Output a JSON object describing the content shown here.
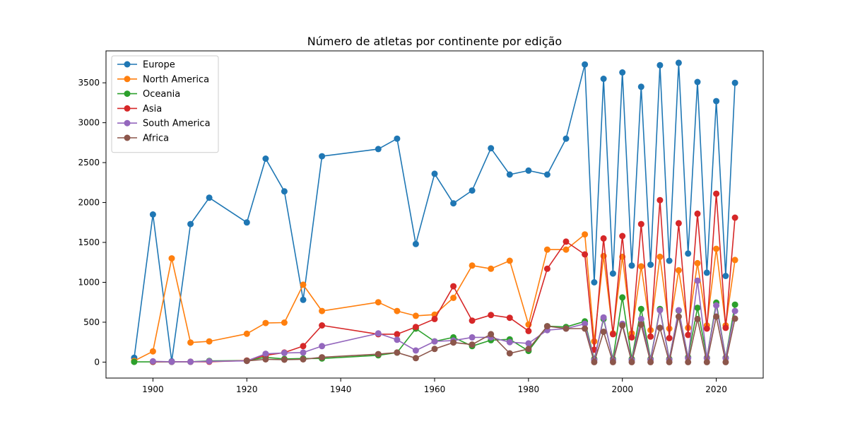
{
  "chart_data": {
    "type": "line",
    "title": "Número de atletas por continente por edição",
    "xlabel": "",
    "ylabel": "",
    "xlim": [
      1890,
      2030
    ],
    "ylim": [
      -200,
      3900
    ],
    "x_ticks": [
      1900,
      1920,
      1940,
      1960,
      1980,
      2000,
      2020
    ],
    "y_ticks": [
      0,
      500,
      1000,
      1500,
      2000,
      2500,
      3000,
      3500
    ],
    "legend_position": "top-left",
    "grid": false,
    "series": [
      {
        "name": "Europe",
        "color": "#1f77b4",
        "points": [
          [
            1896,
            55
          ],
          [
            1900,
            1850
          ],
          [
            1904,
            10
          ],
          [
            1908,
            1730
          ],
          [
            1912,
            2060
          ],
          [
            1920,
            1750
          ],
          [
            1924,
            2550
          ],
          [
            1928,
            2140
          ],
          [
            1932,
            780
          ],
          [
            1936,
            2580
          ],
          [
            1948,
            2670
          ],
          [
            1952,
            2800
          ],
          [
            1956,
            1480
          ],
          [
            1960,
            2360
          ],
          [
            1964,
            1990
          ],
          [
            1968,
            2150
          ],
          [
            1972,
            2680
          ],
          [
            1976,
            2350
          ],
          [
            1980,
            2400
          ],
          [
            1984,
            2350
          ],
          [
            1988,
            2800
          ],
          [
            1992,
            3730
          ],
          [
            1994,
            1000
          ],
          [
            1996,
            3550
          ],
          [
            1998,
            1110
          ],
          [
            2000,
            3630
          ],
          [
            2002,
            1210
          ],
          [
            2004,
            3450
          ],
          [
            2006,
            1220
          ],
          [
            2008,
            3720
          ],
          [
            2010,
            1270
          ],
          [
            2012,
            3750
          ],
          [
            2014,
            1360
          ],
          [
            2016,
            3510
          ],
          [
            2018,
            1120
          ],
          [
            2020,
            3270
          ],
          [
            2022,
            1080
          ],
          [
            2024,
            3500
          ]
        ]
      },
      {
        "name": "North America",
        "color": "#ff7f0e",
        "points": [
          [
            1896,
            15
          ],
          [
            1900,
            135
          ],
          [
            1904,
            1300
          ],
          [
            1908,
            245
          ],
          [
            1912,
            260
          ],
          [
            1920,
            355
          ],
          [
            1924,
            490
          ],
          [
            1928,
            495
          ],
          [
            1932,
            970
          ],
          [
            1936,
            640
          ],
          [
            1948,
            750
          ],
          [
            1952,
            640
          ],
          [
            1956,
            580
          ],
          [
            1960,
            595
          ],
          [
            1964,
            805
          ],
          [
            1968,
            1210
          ],
          [
            1972,
            1170
          ],
          [
            1976,
            1270
          ],
          [
            1980,
            470
          ],
          [
            1984,
            1410
          ],
          [
            1988,
            1410
          ],
          [
            1992,
            1600
          ],
          [
            1994,
            260
          ],
          [
            1996,
            1330
          ],
          [
            1998,
            360
          ],
          [
            2000,
            1320
          ],
          [
            2002,
            360
          ],
          [
            2004,
            1200
          ],
          [
            2006,
            400
          ],
          [
            2008,
            1320
          ],
          [
            2010,
            420
          ],
          [
            2012,
            1150
          ],
          [
            2014,
            430
          ],
          [
            2016,
            1240
          ],
          [
            2018,
            460
          ],
          [
            2020,
            1420
          ],
          [
            2022,
            460
          ],
          [
            2024,
            1280
          ]
        ]
      },
      {
        "name": "Oceania",
        "color": "#2ca02c",
        "points": [
          [
            1896,
            3
          ],
          [
            1900,
            3
          ],
          [
            1904,
            3
          ],
          [
            1908,
            5
          ],
          [
            1912,
            15
          ],
          [
            1920,
            20
          ],
          [
            1924,
            60
          ],
          [
            1928,
            40
          ],
          [
            1932,
            45
          ],
          [
            1936,
            45
          ],
          [
            1948,
            85
          ],
          [
            1952,
            120
          ],
          [
            1956,
            420
          ],
          [
            1960,
            260
          ],
          [
            1964,
            310
          ],
          [
            1968,
            200
          ],
          [
            1972,
            275
          ],
          [
            1976,
            285
          ],
          [
            1980,
            140
          ],
          [
            1984,
            450
          ],
          [
            1988,
            440
          ],
          [
            1992,
            510
          ],
          [
            1994,
            40
          ],
          [
            1996,
            540
          ],
          [
            1998,
            40
          ],
          [
            2000,
            810
          ],
          [
            2002,
            40
          ],
          [
            2004,
            665
          ],
          [
            2006,
            40
          ],
          [
            2008,
            665
          ],
          [
            2010,
            40
          ],
          [
            2012,
            645
          ],
          [
            2014,
            60
          ],
          [
            2016,
            680
          ],
          [
            2018,
            55
          ],
          [
            2020,
            745
          ],
          [
            2022,
            55
          ],
          [
            2024,
            720
          ]
        ]
      },
      {
        "name": "Asia",
        "color": "#d62728",
        "points": [
          [
            1900,
            5
          ],
          [
            1904,
            5
          ],
          [
            1908,
            5
          ],
          [
            1912,
            5
          ],
          [
            1920,
            20
          ],
          [
            1924,
            85
          ],
          [
            1928,
            120
          ],
          [
            1932,
            200
          ],
          [
            1936,
            460
          ],
          [
            1948,
            350
          ],
          [
            1952,
            350
          ],
          [
            1956,
            440
          ],
          [
            1960,
            540
          ],
          [
            1964,
            950
          ],
          [
            1968,
            520
          ],
          [
            1972,
            590
          ],
          [
            1976,
            555
          ],
          [
            1980,
            390
          ],
          [
            1984,
            1170
          ],
          [
            1988,
            1510
          ],
          [
            1992,
            1350
          ],
          [
            1994,
            155
          ],
          [
            1996,
            1550
          ],
          [
            1998,
            350
          ],
          [
            2000,
            1580
          ],
          [
            2002,
            310
          ],
          [
            2004,
            1730
          ],
          [
            2006,
            320
          ],
          [
            2008,
            2030
          ],
          [
            2010,
            300
          ],
          [
            2012,
            1740
          ],
          [
            2014,
            340
          ],
          [
            2016,
            1860
          ],
          [
            2018,
            420
          ],
          [
            2020,
            2110
          ],
          [
            2022,
            430
          ],
          [
            2024,
            1810
          ]
        ]
      },
      {
        "name": "South America",
        "color": "#9467bd",
        "points": [
          [
            1900,
            10
          ],
          [
            1904,
            5
          ],
          [
            1908,
            5
          ],
          [
            1912,
            10
          ],
          [
            1920,
            15
          ],
          [
            1924,
            105
          ],
          [
            1928,
            115
          ],
          [
            1932,
            120
          ],
          [
            1936,
            200
          ],
          [
            1948,
            360
          ],
          [
            1952,
            280
          ],
          [
            1956,
            145
          ],
          [
            1960,
            260
          ],
          [
            1964,
            270
          ],
          [
            1968,
            310
          ],
          [
            1972,
            310
          ],
          [
            1976,
            250
          ],
          [
            1980,
            235
          ],
          [
            1984,
            400
          ],
          [
            1988,
            420
          ],
          [
            1992,
            480
          ],
          [
            1994,
            25
          ],
          [
            1996,
            560
          ],
          [
            1998,
            25
          ],
          [
            2000,
            480
          ],
          [
            2002,
            25
          ],
          [
            2004,
            540
          ],
          [
            2006,
            30
          ],
          [
            2008,
            650
          ],
          [
            2010,
            30
          ],
          [
            2012,
            650
          ],
          [
            2014,
            50
          ],
          [
            2016,
            1020
          ],
          [
            2018,
            50
          ],
          [
            2020,
            710
          ],
          [
            2022,
            50
          ],
          [
            2024,
            640
          ]
        ]
      },
      {
        "name": "Africa",
        "color": "#8c564b",
        "points": [
          [
            1920,
            15
          ],
          [
            1924,
            35
          ],
          [
            1928,
            30
          ],
          [
            1932,
            35
          ],
          [
            1936,
            60
          ],
          [
            1948,
            100
          ],
          [
            1952,
            120
          ],
          [
            1956,
            50
          ],
          [
            1960,
            165
          ],
          [
            1964,
            245
          ],
          [
            1968,
            220
          ],
          [
            1972,
            350
          ],
          [
            1976,
            110
          ],
          [
            1980,
            165
          ],
          [
            1984,
            450
          ],
          [
            1988,
            420
          ],
          [
            1992,
            420
          ],
          [
            1994,
            0
          ],
          [
            1996,
            380
          ],
          [
            1998,
            0
          ],
          [
            2000,
            460
          ],
          [
            2002,
            0
          ],
          [
            2004,
            470
          ],
          [
            2006,
            0
          ],
          [
            2008,
            430
          ],
          [
            2010,
            0
          ],
          [
            2012,
            570
          ],
          [
            2014,
            0
          ],
          [
            2016,
            540
          ],
          [
            2018,
            0
          ],
          [
            2020,
            570
          ],
          [
            2022,
            0
          ],
          [
            2024,
            545
          ]
        ]
      }
    ]
  }
}
